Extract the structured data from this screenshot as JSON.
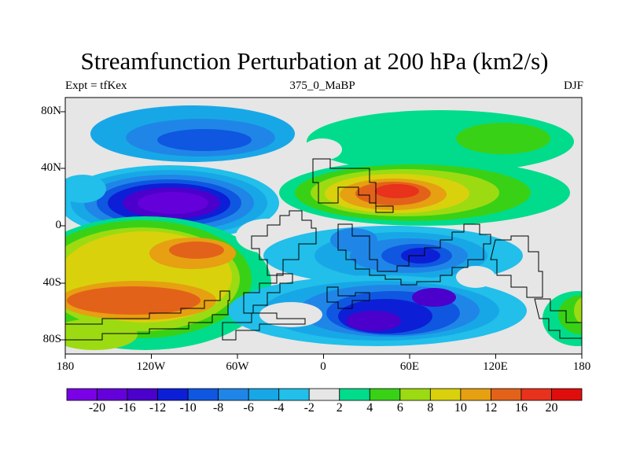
{
  "title": "Streamfunction Perturbation at 200 hPa (km2/s)",
  "left_string": "Expt = tfKex",
  "center_string": "375_0_MaBP",
  "right_string": "DJF",
  "lat_labels": [
    "80N",
    "40N",
    "0",
    "40S",
    "80S"
  ],
  "lon_labels": [
    "180",
    "120W",
    "60W",
    "0",
    "60E",
    "120E",
    "180"
  ],
  "colorbar": {
    "colors": [
      "#7a00e6",
      "#6400d9",
      "#4b00cc",
      "#0d1fd6",
      "#0f57e0",
      "#1f86e8",
      "#18a7e6",
      "#21bfea",
      "#e6e6e6",
      "#00dc8c",
      "#39d116",
      "#9cdb12",
      "#d9d10c",
      "#e6a011",
      "#e3621a",
      "#e8321c",
      "#e00d0d"
    ],
    "labels": [
      "-20",
      "-16",
      "-12",
      "-10",
      "-8",
      "-6",
      "-4",
      "-2",
      "2",
      "4",
      "6",
      "8",
      "10",
      "12",
      "16",
      "20"
    ]
  }
}
